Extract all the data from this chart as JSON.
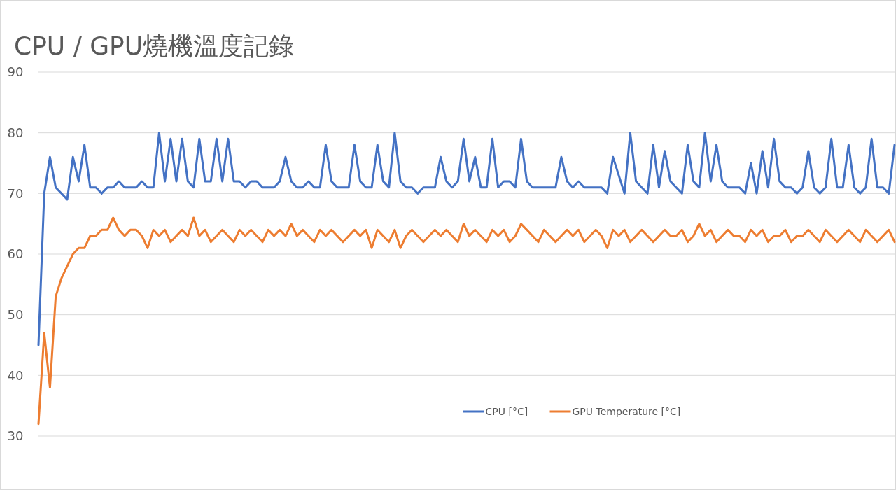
{
  "chart_data": {
    "type": "line",
    "title": "CPU / GPU燒機溫度記錄",
    "categories": [
      null,
      null,
      null,
      null,
      null,
      null,
      null,
      null,
      null,
      null,
      null,
      null,
      null,
      null,
      null,
      null,
      null,
      null,
      null,
      null,
      null,
      null,
      null,
      null,
      null,
      null,
      null,
      null,
      null,
      null,
      null,
      null,
      null,
      null,
      null,
      null,
      null,
      null,
      null,
      null,
      null,
      null,
      null,
      null,
      null,
      null,
      null,
      null,
      null,
      null,
      null,
      null,
      null,
      null,
      null,
      null,
      null,
      null,
      null,
      null,
      null,
      null,
      null,
      null,
      null,
      null,
      null,
      null,
      null,
      null,
      null,
      null,
      null,
      null,
      null,
      null,
      null,
      null,
      null,
      null,
      null,
      null,
      null,
      null,
      null,
      null,
      null,
      null,
      null,
      null,
      null,
      null,
      null,
      null,
      null,
      null,
      null,
      null,
      null,
      null,
      null,
      null,
      null,
      null,
      null,
      null,
      null,
      null,
      null,
      null,
      null,
      null,
      null,
      null,
      null,
      null,
      null,
      null,
      null,
      null,
      null,
      null,
      null,
      null,
      null,
      null,
      null,
      null,
      null,
      null,
      null,
      null,
      null,
      null,
      null,
      null,
      null,
      null,
      null,
      null,
      null,
      null,
      null,
      null,
      null,
      null,
      null,
      null,
      null,
      null
    ],
    "series": [
      {
        "name": "CPU [°C]",
        "color": "#4472c4",
        "values": [
          45,
          70,
          76,
          71,
          70,
          69,
          76,
          72,
          78,
          71,
          71,
          70,
          71,
          71,
          72,
          71,
          71,
          71,
          72,
          71,
          71,
          80,
          72,
          79,
          72,
          79,
          72,
          71,
          79,
          72,
          72,
          79,
          72,
          79,
          72,
          72,
          71,
          72,
          72,
          71,
          71,
          71,
          72,
          76,
          72,
          71,
          71,
          72,
          71,
          71,
          78,
          72,
          71,
          71,
          71,
          78,
          72,
          71,
          71,
          78,
          72,
          71,
          80,
          72,
          71,
          71,
          70,
          71,
          71,
          71,
          76,
          72,
          71,
          72,
          79,
          72,
          76,
          71,
          71,
          79,
          71,
          72,
          72,
          71,
          79,
          72,
          71,
          71,
          71,
          71,
          71,
          76,
          72,
          71,
          72,
          71,
          71,
          71,
          71,
          70,
          76,
          73,
          70,
          80,
          72,
          71,
          70,
          78,
          71,
          77,
          72,
          71,
          70,
          78,
          72,
          71,
          80,
          72,
          78,
          72,
          71,
          71,
          71,
          70,
          75,
          70,
          77,
          71,
          79,
          72,
          71,
          71,
          70,
          71,
          77,
          71,
          70,
          71,
          79,
          71,
          71,
          78,
          71,
          70,
          71,
          79,
          71,
          71,
          70,
          78
        ]
      },
      {
        "name": "GPU Temperature [°C]",
        "color": "#ed7d31",
        "values": [
          32,
          47,
          38,
          53,
          56,
          58,
          60,
          61,
          61,
          63,
          63,
          64,
          64,
          66,
          64,
          63,
          64,
          64,
          63,
          61,
          64,
          63,
          64,
          62,
          63,
          64,
          63,
          66,
          63,
          64,
          62,
          63,
          64,
          63,
          62,
          64,
          63,
          64,
          63,
          62,
          64,
          63,
          64,
          63,
          65,
          63,
          64,
          63,
          62,
          64,
          63,
          64,
          63,
          62,
          63,
          64,
          63,
          64,
          61,
          64,
          63,
          62,
          64,
          61,
          63,
          64,
          63,
          62,
          63,
          64,
          63,
          64,
          63,
          62,
          65,
          63,
          64,
          63,
          62,
          64,
          63,
          64,
          62,
          63,
          65,
          64,
          63,
          62,
          64,
          63,
          62,
          63,
          64,
          63,
          64,
          62,
          63,
          64,
          63,
          61,
          64,
          63,
          64,
          62,
          63,
          64,
          63,
          62,
          63,
          64,
          63,
          63,
          64,
          62,
          63,
          65,
          63,
          64,
          62,
          63,
          64,
          63,
          63,
          62,
          64,
          63,
          64,
          62,
          63,
          63,
          64,
          62,
          63,
          63,
          64,
          63,
          62,
          64,
          63,
          62,
          63,
          64,
          63,
          62,
          64,
          63,
          62,
          63,
          64,
          62
        ]
      }
    ],
    "ylim": [
      30,
      90
    ],
    "yticks": [
      30,
      40,
      50,
      60,
      70,
      80,
      90
    ],
    "grid": "y",
    "legend": "bottom",
    "line_style": "solid",
    "marker": "none"
  }
}
